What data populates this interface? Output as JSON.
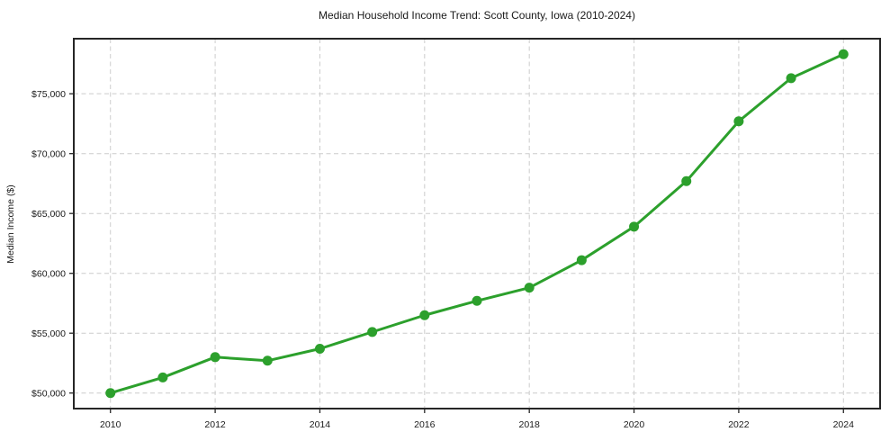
{
  "chart_data": {
    "type": "line",
    "title": "Median Household Income Trend: Scott County, Iowa (2010-2024)",
    "xlabel": "",
    "ylabel": "Median Income ($)",
    "series_name": "Median Household Income",
    "x": [
      2010,
      2011,
      2012,
      2013,
      2014,
      2015,
      2016,
      2017,
      2018,
      2019,
      2020,
      2021,
      2022,
      2023,
      2024
    ],
    "values": [
      50000,
      51300,
      53000,
      52700,
      53700,
      55100,
      56500,
      57700,
      58800,
      61100,
      63900,
      67700,
      72700,
      76300,
      78300
    ],
    "xlim": [
      2009.3,
      2024.7
    ],
    "ylim": [
      48700,
      79600
    ],
    "xticks": {
      "values": [
        2010,
        2012,
        2014,
        2016,
        2018,
        2020,
        2022,
        2024
      ],
      "labels": [
        "2010",
        "2012",
        "2014",
        "2016",
        "2018",
        "2020",
        "2022",
        "2024"
      ]
    },
    "yticks": {
      "values": [
        50000,
        55000,
        60000,
        65000,
        70000,
        75000
      ],
      "labels": [
        "$50,000",
        "$55,000",
        "$60,000",
        "$65,000",
        "$70,000",
        "$75,000"
      ]
    },
    "grid": true,
    "grid_style": "dashed",
    "legend": false,
    "marker": "circle",
    "line_width": 3,
    "marker_radius": 5.5,
    "colors": {
      "line": "#2ca02c",
      "marker": "#2ca02c",
      "grid": "#cccccc",
      "spine": "#262626",
      "text": "#1a1a1a",
      "background": "#ffffff"
    }
  }
}
